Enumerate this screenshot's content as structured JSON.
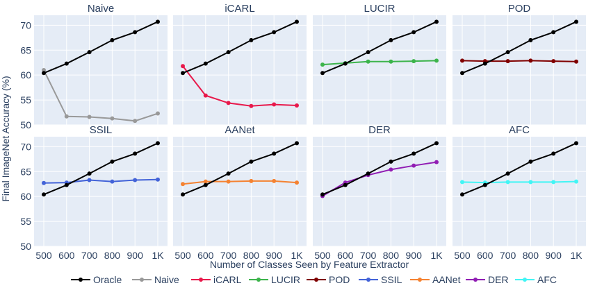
{
  "chart_data": {
    "type": "line",
    "xlabel": "Number of Classes Seen by Feature Extractor",
    "ylabel": "Final ImageNet Accuracy (%)",
    "x": [
      500,
      600,
      700,
      800,
      900,
      1000
    ],
    "x_tick_labels": [
      "500",
      "600",
      "700",
      "800",
      "900",
      "1K"
    ],
    "ylim": [
      50,
      72
    ],
    "y_ticks": [
      50,
      55,
      60,
      65,
      70
    ],
    "grid": true,
    "legend_position": "bottom",
    "reference_series": {
      "name": "Oracle",
      "color": "#000000",
      "values": [
        60.4,
        62.3,
        64.6,
        67.0,
        68.6,
        70.7
      ]
    },
    "panels": [
      {
        "title": "Naive",
        "series": {
          "name": "Naive",
          "color": "#999999",
          "values": [
            61.0,
            51.7,
            51.6,
            51.3,
            50.8,
            52.3
          ]
        }
      },
      {
        "title": "iCARL",
        "series": {
          "name": "iCARL",
          "color": "#e8194b",
          "values": [
            61.8,
            55.9,
            54.4,
            53.8,
            54.1,
            53.9
          ]
        }
      },
      {
        "title": "LUCIR",
        "series": {
          "name": "LUCIR",
          "color": "#3cb44b",
          "values": [
            62.1,
            62.4,
            62.7,
            62.7,
            62.8,
            62.9
          ]
        }
      },
      {
        "title": "POD",
        "series": {
          "name": "POD",
          "color": "#800000",
          "values": [
            62.9,
            62.8,
            62.8,
            62.9,
            62.8,
            62.7
          ]
        }
      },
      {
        "title": "SSIL",
        "series": {
          "name": "SSIL",
          "color": "#4363d8",
          "values": [
            62.7,
            62.8,
            63.3,
            63.0,
            63.3,
            63.4
          ]
        }
      },
      {
        "title": "AANet",
        "series": {
          "name": "AANet",
          "color": "#f58231",
          "values": [
            62.5,
            63.0,
            63.0,
            63.1,
            63.1,
            62.8
          ]
        }
      },
      {
        "title": "DER",
        "series": {
          "name": "DER",
          "color": "#911eb4",
          "values": [
            60.1,
            62.8,
            64.3,
            65.4,
            66.2,
            66.9
          ]
        }
      },
      {
        "title": "AFC",
        "series": {
          "name": "AFC",
          "color": "#42f5f5",
          "values": [
            62.9,
            62.8,
            62.9,
            62.9,
            62.9,
            63.0
          ]
        }
      }
    ],
    "legend": [
      {
        "name": "Oracle",
        "color": "#000000"
      },
      {
        "name": "Naive",
        "color": "#999999"
      },
      {
        "name": "iCARL",
        "color": "#e8194b"
      },
      {
        "name": "LUCIR",
        "color": "#3cb44b"
      },
      {
        "name": "POD",
        "color": "#800000"
      },
      {
        "name": "SSIL",
        "color": "#4363d8"
      },
      {
        "name": "AANet",
        "color": "#f58231"
      },
      {
        "name": "DER",
        "color": "#911eb4"
      },
      {
        "name": "AFC",
        "color": "#42f5f5"
      }
    ]
  }
}
